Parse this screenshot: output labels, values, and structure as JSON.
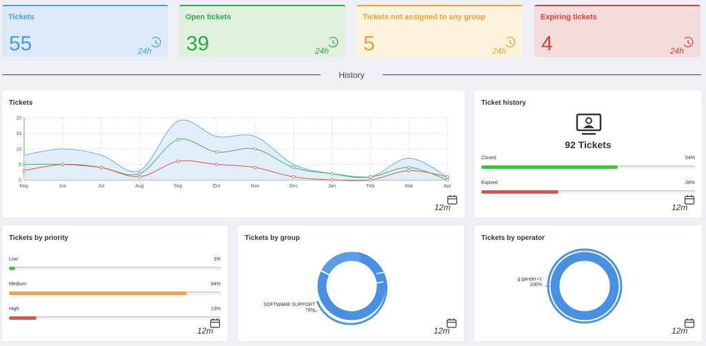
{
  "stats": [
    {
      "label": "Tickets",
      "value": "55",
      "period": "24h",
      "color": "#4a9be0",
      "bg": "#dbeaf6"
    },
    {
      "label": "Open tickets",
      "value": "39",
      "period": "24h",
      "color": "#2ea84a",
      "bg": "#dff0dc"
    },
    {
      "label": "Tickets not assigned to any group",
      "value": "5",
      "period": "24h",
      "color": "#f0a030",
      "bg": "#fdf3dc"
    },
    {
      "label": "Expiring tickets",
      "value": "4",
      "period": "24h",
      "color": "#d9403a",
      "bg": "#f3dcdc"
    }
  ],
  "history_title": "History",
  "tickets_chart": {
    "title": "Tickets",
    "period": "12m"
  },
  "chart_data": {
    "type": "line",
    "categories": [
      "May",
      "Jun",
      "Jul",
      "Aug",
      "Sep",
      "Oct",
      "Nov",
      "Dec",
      "Jan",
      "Feb",
      "Mar",
      "Apr"
    ],
    "ylim": [
      0,
      20
    ],
    "yticks": [
      "0",
      "5",
      "10",
      "15",
      "20"
    ],
    "series": [
      {
        "values": [
          8,
          10,
          8,
          3,
          19,
          14,
          14,
          5,
          2,
          1,
          7,
          1
        ],
        "color": "#6aa8e6",
        "fill": true
      },
      {
        "values": [
          5,
          5,
          4,
          2,
          13,
          9,
          10,
          4,
          2,
          1,
          4,
          0
        ],
        "color": "#3cb060",
        "fill": false
      },
      {
        "values": [
          3,
          5,
          4,
          1,
          6,
          5,
          4,
          1,
          0,
          0,
          3,
          1
        ],
        "color": "#d9534f",
        "fill": false
      }
    ],
    "grid": true
  },
  "ticket_history": {
    "title": "Ticket history",
    "total": "92 Tickets",
    "period": "12m",
    "rows": [
      {
        "label": "Closed",
        "percent": "64%",
        "value": 64,
        "color": "#3cc43c"
      },
      {
        "label": "Expired",
        "percent": "36%",
        "value": 36,
        "color": "#d9534f"
      }
    ]
  },
  "priority": {
    "title": "Tickets by priority",
    "period": "12m",
    "rows": [
      {
        "label": "Low",
        "percent": "3%",
        "value": 3,
        "color": "#3cc43c"
      },
      {
        "label": "Medium",
        "percent": "84%",
        "value": 84,
        "color": "#f0a050"
      },
      {
        "label": "High",
        "percent": "13%",
        "value": 13,
        "color": "#d9534f"
      }
    ]
  },
  "by_group": {
    "title": "Tickets by group",
    "period": "12m",
    "label": "SOFTWARE SUPPORT",
    "percent": "78%"
  },
  "by_operator": {
    "title": "Tickets by operator",
    "period": "12m",
    "label": "g.gander+1",
    "percent": "100%"
  }
}
